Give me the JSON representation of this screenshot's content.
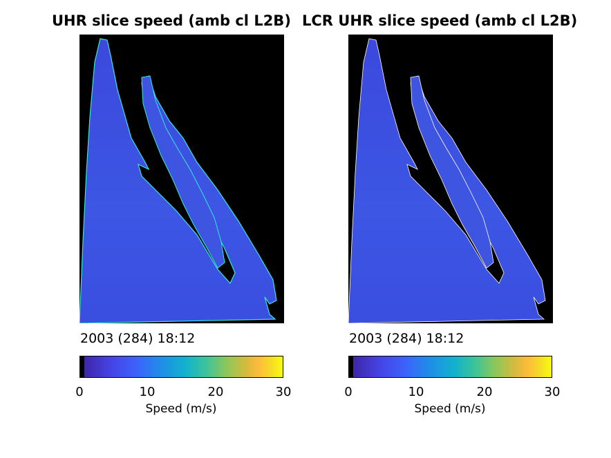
{
  "chart_data": [
    {
      "type": "heatmap",
      "title": "UHR slice speed (amb cl L2B)",
      "timestamp": "2003 (284) 18:12",
      "colorbar": {
        "label": "Speed (m/s)",
        "range": [
          0,
          30
        ],
        "ticks": [
          "0",
          "10",
          "20",
          "30"
        ],
        "colormap": "parula"
      }
    },
    {
      "type": "heatmap",
      "title": "LCR UHR slice speed (amb cl L2B)",
      "timestamp": "2003 (284) 18:12",
      "colorbar": {
        "label": "Speed (m/s)",
        "range": [
          0,
          30
        ],
        "ticks": [
          "0",
          "10",
          "20",
          "30"
        ],
        "colormap": "parula"
      }
    }
  ],
  "colors": {
    "background_land": "#000000",
    "ocean_dominant": "#3a4fe0",
    "coastline": "#35e8e0"
  }
}
